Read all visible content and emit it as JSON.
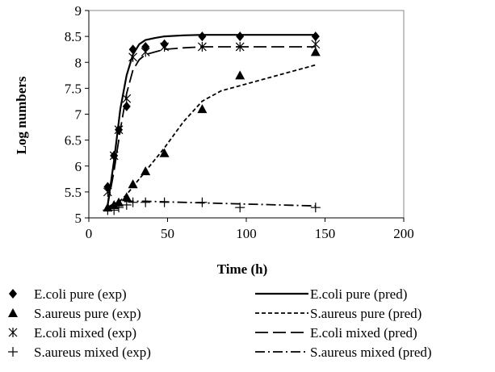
{
  "chart_data": {
    "type": "scatter",
    "title": "",
    "xlabel": "Time (h)",
    "ylabel": "Log numbers",
    "xlim": [
      0,
      200
    ],
    "ylim": [
      5,
      9
    ],
    "xticks": [
      "0",
      "50",
      "100",
      "150",
      "200"
    ],
    "yticks": [
      "5",
      "5.5",
      "6",
      "6.5",
      "7",
      "7.5",
      "8",
      "8.5",
      "9"
    ],
    "grid": false,
    "legend_position": "bottom",
    "experimental": [
      {
        "name": "E.coli pure (exp)",
        "marker": "diamond",
        "x": [
          12,
          16,
          19,
          24,
          28,
          36,
          48,
          72,
          96,
          144
        ],
        "y": [
          5.6,
          6.2,
          6.7,
          7.15,
          8.25,
          8.3,
          8.35,
          8.5,
          8.5,
          8.5
        ]
      },
      {
        "name": "S.aureus pure (exp)",
        "marker": "triangle",
        "x": [
          12,
          16,
          19,
          24,
          28,
          36,
          48,
          72,
          96,
          144
        ],
        "y": [
          5.2,
          5.25,
          5.3,
          5.4,
          5.65,
          5.9,
          6.25,
          7.1,
          7.75,
          8.2
        ]
      },
      {
        "name": "E.coli mixed (exp)",
        "marker": "asterisk",
        "x": [
          12,
          16,
          19,
          24,
          28,
          36,
          48,
          72,
          96,
          144
        ],
        "y": [
          5.5,
          6.2,
          6.7,
          7.3,
          8.1,
          8.2,
          8.3,
          8.3,
          8.3,
          8.35
        ]
      },
      {
        "name": "S.aureus mixed (exp)",
        "marker": "plus",
        "x": [
          12,
          16,
          19,
          24,
          28,
          36,
          48,
          72,
          96,
          144
        ],
        "y": [
          5.15,
          5.15,
          5.2,
          5.25,
          5.3,
          5.3,
          5.3,
          5.3,
          5.2,
          5.2
        ]
      }
    ],
    "predicted": [
      {
        "name": "E.coli pure (pred)",
        "dash": "solid",
        "x": [
          12,
          16,
          20,
          24,
          28,
          32,
          36,
          42,
          48,
          60,
          72,
          96,
          120,
          144
        ],
        "y": [
          5.25,
          6.1,
          7.1,
          7.75,
          8.15,
          8.35,
          8.43,
          8.47,
          8.5,
          8.52,
          8.53,
          8.53,
          8.53,
          8.53
        ]
      },
      {
        "name": "S.aureus pure (pred)",
        "dash": "short",
        "x": [
          12,
          16,
          20,
          24,
          28,
          36,
          48,
          60,
          72,
          84,
          96,
          120,
          144
        ],
        "y": [
          5.2,
          5.25,
          5.33,
          5.45,
          5.6,
          5.9,
          6.35,
          6.85,
          7.25,
          7.45,
          7.55,
          7.75,
          7.95
        ]
      },
      {
        "name": "E.coli mixed (pred)",
        "dash": "long",
        "x": [
          12,
          16,
          20,
          24,
          28,
          32,
          36,
          42,
          48,
          60,
          72,
          96,
          120,
          144
        ],
        "y": [
          5.25,
          5.9,
          6.7,
          7.4,
          7.85,
          8.05,
          8.15,
          8.2,
          8.25,
          8.28,
          8.3,
          8.3,
          8.3,
          8.3
        ]
      },
      {
        "name": "S.aureus mixed (pred)",
        "dash": "dashdot",
        "x": [
          12,
          16,
          20,
          24,
          28,
          36,
          48,
          72,
          96,
          120,
          144
        ],
        "y": [
          5.2,
          5.28,
          5.31,
          5.32,
          5.32,
          5.32,
          5.31,
          5.29,
          5.27,
          5.25,
          5.23
        ]
      }
    ]
  }
}
